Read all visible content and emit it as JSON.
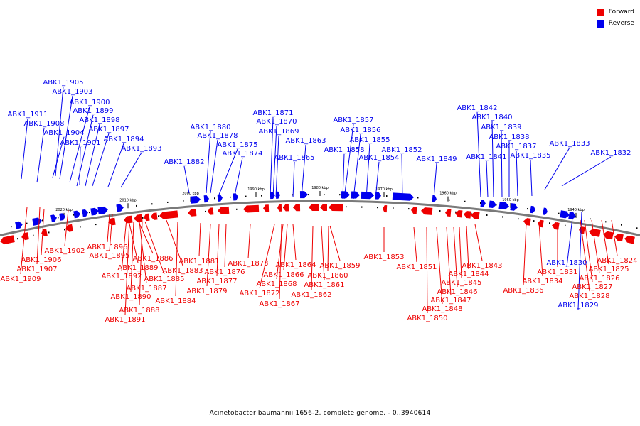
{
  "caption": "Acinetobacter baumannii 1656-2, complete genome. - 0..3940614",
  "legend": {
    "forward_label": "Forward",
    "reverse_label": "Reverse"
  },
  "colors": {
    "forward": "#ee0000",
    "reverse": "#0000ee",
    "backbone": "#7a7a7a",
    "tick": "#000000"
  },
  "scale_labels": [
    "2020 kbp",
    "2010 kbp",
    "2000 kbp",
    "1990 kbp",
    "1980 kbp",
    "1970 kbp",
    "1960 kbp",
    "1950 kbp",
    "1940 kbp"
  ],
  "reverse_genes": [
    "ABK1_1905",
    "ABK1_1903",
    "ABK1_1900",
    "ABK1_1899",
    "ABK1_1911",
    "ABK1_1898",
    "ABK1_1908",
    "ABK1_1897",
    "ABK1_1904",
    "ABK1_1894",
    "ABK1_1901",
    "ABK1_1893",
    "ABK1_1882",
    "ABK1_1880",
    "ABK1_1878",
    "ABK1_1875",
    "ABK1_1874",
    "ABK1_1871",
    "ABK1_1870",
    "ABK1_1869",
    "ABK1_1863",
    "ABK1_1865",
    "ABK1_1857",
    "ABK1_1856",
    "ABK1_1855",
    "ABK1_1858",
    "ABK1_1854",
    "ABK1_1852",
    "ABK1_1849",
    "ABK1_1842",
    "ABK1_1840",
    "ABK1_1839",
    "ABK1_1838",
    "ABK1_1837",
    "ABK1_1841",
    "ABK1_1835",
    "ABK1_1833",
    "ABK1_1832",
    "ABK1_1830",
    "ABK1_1829"
  ],
  "forward_genes": [
    "ABK1_1902",
    "ABK1_1906",
    "ABK1_1907",
    "ABK1_1909",
    "ABK1_1896",
    "ABK1_1895",
    "ABK1_1886",
    "ABK1_1889",
    "ABK1_1892",
    "ABK1_1883",
    "ABK1_1885",
    "ABK1_1887",
    "ABK1_1890",
    "ABK1_1888",
    "ABK1_1891",
    "ABK1_1884",
    "ABK1_1881",
    "ABK1_1876",
    "ABK1_1877",
    "ABK1_1879",
    "ABK1_1873",
    "ABK1_1864",
    "ABK1_1866",
    "ABK1_1868",
    "ABK1_1872",
    "ABK1_1867",
    "ABK1_1859",
    "ABK1_1860",
    "ABK1_1861",
    "ABK1_1862",
    "ABK1_1853",
    "ABK1_1851",
    "ABK1_1850",
    "ABK1_1848",
    "ABK1_1847",
    "ABK1_1846",
    "ABK1_1845",
    "ABK1_1844",
    "ABK1_1843",
    "ABK1_1836",
    "ABK1_1834",
    "ABK1_1831",
    "ABK1_1828",
    "ABK1_1827",
    "ABK1_1826",
    "ABK1_1825",
    "ABK1_1824"
  ]
}
